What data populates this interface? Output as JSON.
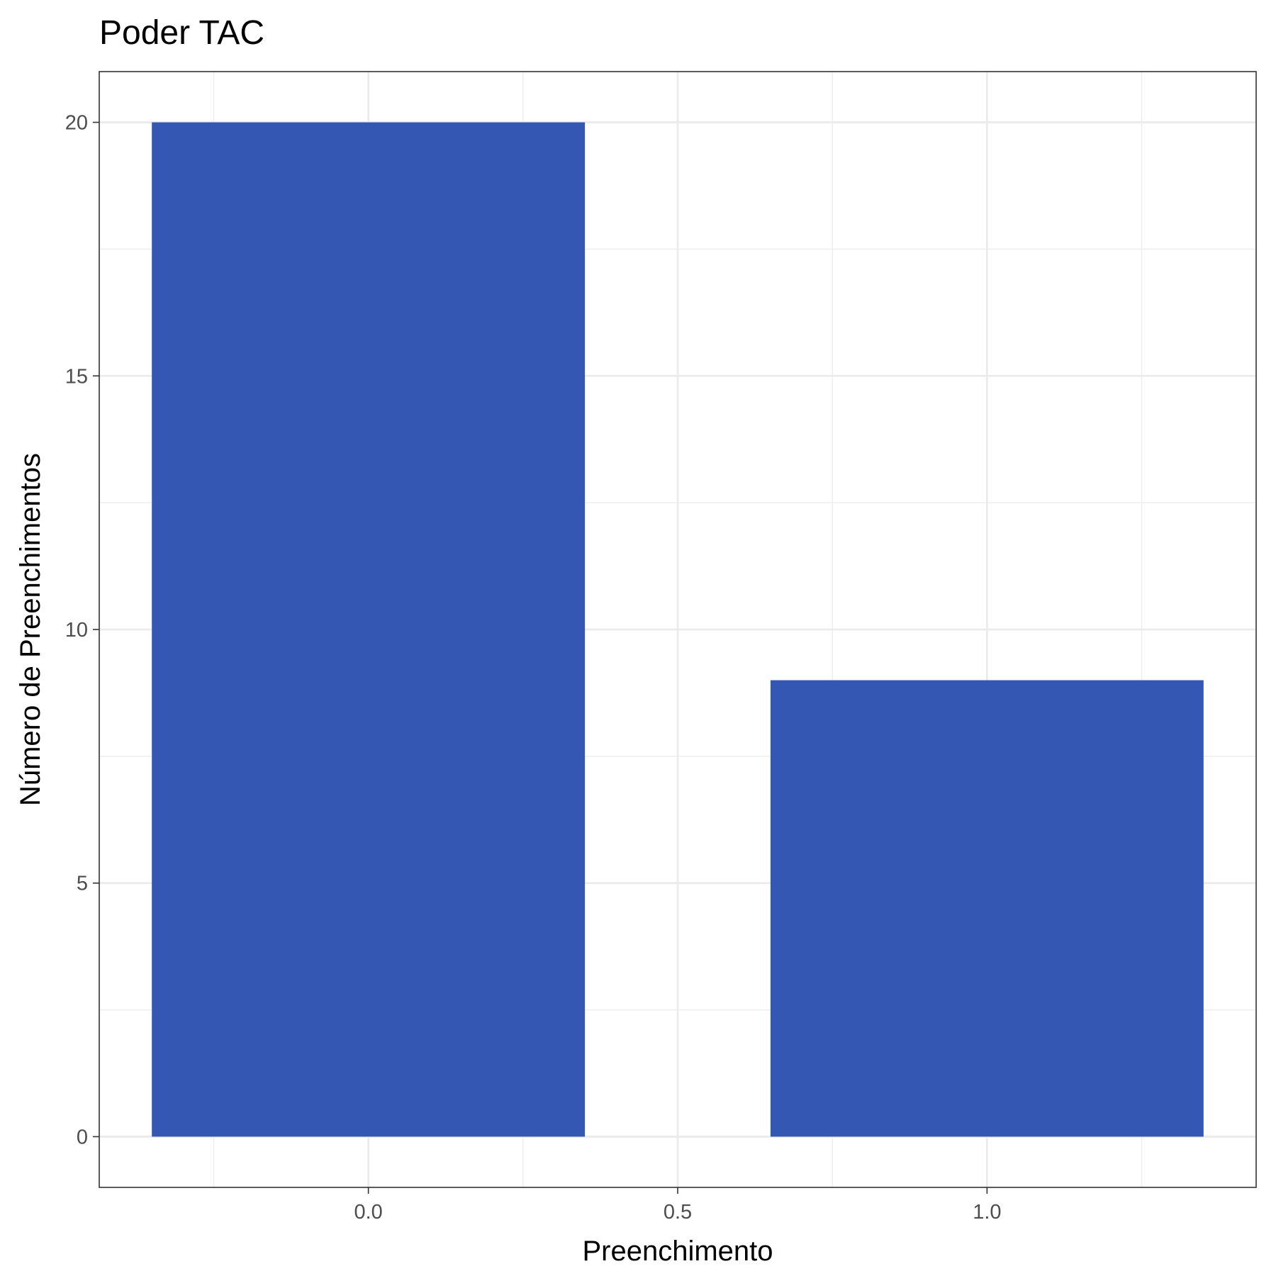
{
  "chart_data": {
    "type": "bar",
    "title": "Poder TAC",
    "xlabel": "Preenchimento",
    "ylabel": "Número de Preenchimentos",
    "x": [
      0,
      1
    ],
    "values": [
      20,
      9
    ],
    "bar_width": 0.7,
    "xlim": [
      -0.435,
      1.435
    ],
    "ylim": [
      -1,
      21
    ],
    "x_ticks": [
      0.0,
      0.5,
      1.0
    ],
    "x_tick_labels": [
      "0.0",
      "0.5",
      "1.0"
    ],
    "y_ticks": [
      0,
      5,
      10,
      15,
      20
    ],
    "y_tick_labels": [
      "0",
      "5",
      "10",
      "15",
      "20"
    ],
    "grid": true,
    "legend": "none",
    "bar_color": "#3457b4",
    "panel_border_color": "#333333",
    "grid_color": "#ebebeb"
  }
}
